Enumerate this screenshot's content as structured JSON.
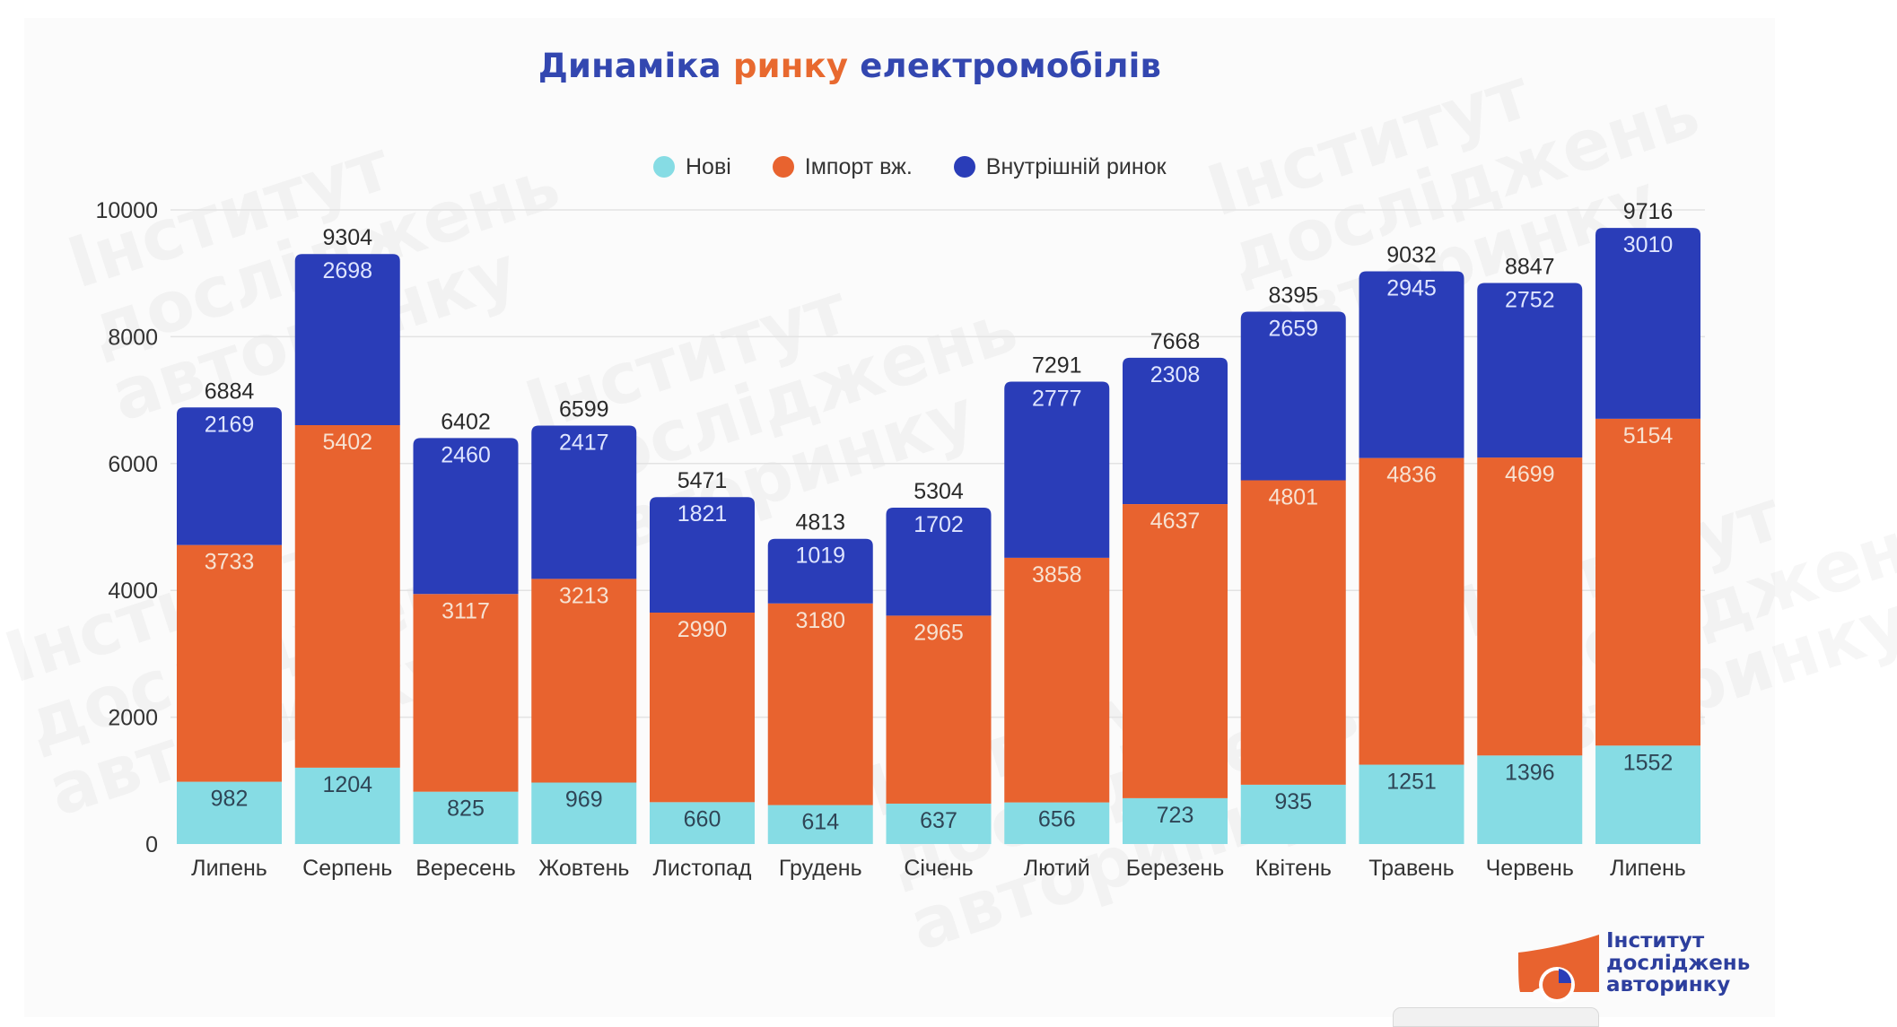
{
  "title": {
    "part1": "Динаміка ",
    "part2": "ринку",
    "part3": " електромобілів"
  },
  "colors": {
    "new": "#86dce4",
    "import": "#e8632f",
    "domestic": "#2a3db8",
    "title": "#3347b0",
    "title_accent": "#e8692f"
  },
  "watermark_text": "Інститут\nдосліджень\nавторинку",
  "logo": {
    "line1": "Інститут",
    "line2": "досліджень",
    "line3": "авторинку"
  },
  "chart_data": {
    "type": "bar",
    "stacked": true,
    "title": "Динаміка ринку електромобілів",
    "xlabel": "",
    "ylabel": "",
    "ylim": [
      0,
      10000
    ],
    "yticks": [
      0,
      2000,
      4000,
      6000,
      8000,
      10000
    ],
    "grid": true,
    "legend_position": "top-center",
    "categories": [
      "Липень",
      "Серпень",
      "Вересень",
      "Жовтень",
      "Листопад",
      "Грудень",
      "Січень",
      "Лютий",
      "Березень",
      "Квітень",
      "Травень",
      "Червень",
      "Липень"
    ],
    "series": [
      {
        "name": "Нові",
        "key": "new",
        "values": [
          982,
          1204,
          825,
          969,
          660,
          614,
          637,
          656,
          723,
          935,
          1251,
          1396,
          1552
        ]
      },
      {
        "name": "Імпорт вж.",
        "key": "import",
        "values": [
          3733,
          5402,
          3117,
          3213,
          2990,
          3180,
          2965,
          3858,
          4637,
          4801,
          4836,
          4699,
          5154
        ]
      },
      {
        "name": "Внутрішній ринок",
        "key": "domestic",
        "values": [
          2169,
          2698,
          2460,
          2417,
          1821,
          1019,
          1702,
          2777,
          2308,
          2659,
          2945,
          2752,
          3010
        ]
      }
    ],
    "totals": [
      6884,
      9304,
      6402,
      6599,
      5471,
      4813,
      5304,
      7291,
      7668,
      8395,
      9032,
      8847,
      9716
    ]
  }
}
